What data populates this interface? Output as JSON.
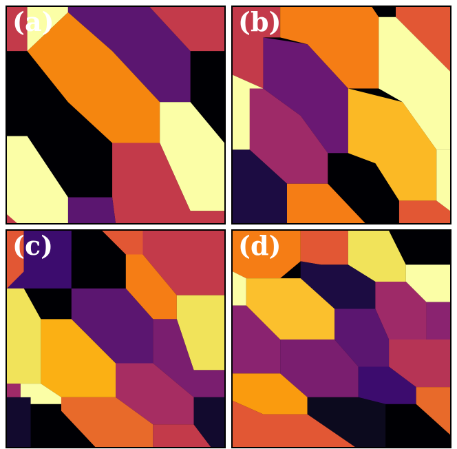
{
  "colors": {
    "black": "#000004",
    "deep_indigo": "#1c0c42",
    "indigo": "#3c0c6e",
    "purple": "#5b1670",
    "violet": "#6f1a72",
    "magenta": "#8a2370",
    "crimson": "#b63455",
    "rose": "#c33a4a",
    "red_orange": "#e25734",
    "orange": "#f57d15",
    "dark_orange": "#f4760f",
    "amber": "#fa9b0e",
    "gold": "#fbb925",
    "yellow": "#f1e35a",
    "pale_yellow": "#fbfea6"
  },
  "panels": [
    {
      "id": "a",
      "label": "(a)"
    },
    {
      "id": "b",
      "label": "(b)"
    },
    {
      "id": "c",
      "label": "(c)"
    },
    {
      "id": "d",
      "label": "(d)"
    }
  ]
}
